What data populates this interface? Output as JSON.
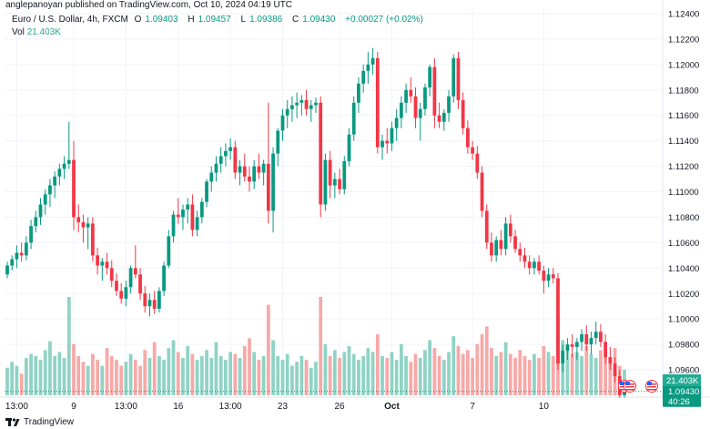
{
  "publisher_line": "anglepanoyan published on TradingView.com, Oct 10, 2024 04:19 UTC",
  "symbol": {
    "name": "Euro / U.S. Dollar, 4h, FXCM",
    "o_label": "O",
    "o": "1.09403",
    "h_label": "H",
    "h": "1.09457",
    "l_label": "L",
    "l": "1.09386",
    "c_label": "C",
    "c": "1.09430",
    "change": "+0.00027 (+0.02%)"
  },
  "volume": {
    "label": "Vol",
    "value": "21.403K"
  },
  "logo_text": "TradingView",
  "colors": {
    "up": "#089981",
    "down": "#f23645",
    "up_vol": "#8fd3c5",
    "down_vol": "#f7a9a7",
    "price_tag": "#089981",
    "vol_tag": "#22ab94"
  },
  "chart_data": {
    "type": "candlestick",
    "ylim": [
      1.094,
      1.1245
    ],
    "y_ticks": [
      "1.12400",
      "1.12200",
      "1.12000",
      "1.11800",
      "1.11600",
      "1.11400",
      "1.11200",
      "1.11000",
      "1.10800",
      "1.10600",
      "1.10400",
      "1.10200",
      "1.10000",
      "1.09800",
      "1.09600"
    ],
    "x_ticks": [
      "13:00",
      "9",
      "13:00",
      "16",
      "13:00",
      "23",
      "26",
      "Oct",
      "7",
      "10"
    ],
    "last_price": "1.09430",
    "countdown": "40:26",
    "last_volume": "21.403K",
    "candles": [
      [
        1.1035,
        1.1045,
        1.1032,
        1.1042
      ],
      [
        1.1042,
        1.105,
        1.1038,
        1.1047
      ],
      [
        1.1047,
        1.1058,
        1.104,
        1.1052
      ],
      [
        1.1052,
        1.106,
        1.1045,
        1.105
      ],
      [
        1.105,
        1.1065,
        1.1046,
        1.106
      ],
      [
        1.106,
        1.1078,
        1.1055,
        1.1073
      ],
      [
        1.1073,
        1.1085,
        1.1068,
        1.108
      ],
      [
        1.108,
        1.1095,
        1.1074,
        1.109
      ],
      [
        1.109,
        1.1102,
        1.1082,
        1.1098
      ],
      [
        1.1098,
        1.111,
        1.1088,
        1.1105
      ],
      [
        1.1105,
        1.1116,
        1.1095,
        1.1112
      ],
      [
        1.1112,
        1.1122,
        1.1105,
        1.1118
      ],
      [
        1.1118,
        1.1128,
        1.111,
        1.1122
      ],
      [
        1.1122,
        1.1155,
        1.1118,
        1.1125
      ],
      [
        1.1125,
        1.114,
        1.107,
        1.108
      ],
      [
        1.108,
        1.109,
        1.1068,
        1.1076
      ],
      [
        1.1076,
        1.1082,
        1.106,
        1.1072
      ],
      [
        1.1072,
        1.108,
        1.1055,
        1.1075
      ],
      [
        1.1075,
        1.108,
        1.1045,
        1.105
      ],
      [
        1.105,
        1.1056,
        1.1035,
        1.1042
      ],
      [
        1.1042,
        1.1048,
        1.103,
        1.1045
      ],
      [
        1.1045,
        1.1052,
        1.1035,
        1.104
      ],
      [
        1.104,
        1.1046,
        1.1025,
        1.103
      ],
      [
        1.103,
        1.1036,
        1.1018,
        1.1022
      ],
      [
        1.1022,
        1.1028,
        1.1012,
        1.1016
      ],
      [
        1.1016,
        1.103,
        1.101,
        1.1025
      ],
      [
        1.1025,
        1.1042,
        1.102,
        1.104
      ],
      [
        1.104,
        1.1058,
        1.1032,
        1.1035
      ],
      [
        1.1035,
        1.104,
        1.1015,
        1.102
      ],
      [
        1.102,
        1.1026,
        1.1005,
        1.101
      ],
      [
        1.101,
        1.102,
        1.1002,
        1.1015
      ],
      [
        1.1015,
        1.1022,
        1.1004,
        1.1008
      ],
      [
        1.1008,
        1.1025,
        1.1005,
        1.1022
      ],
      [
        1.1022,
        1.1045,
        1.1018,
        1.1042
      ],
      [
        1.1042,
        1.107,
        1.104,
        1.1065
      ],
      [
        1.1065,
        1.1085,
        1.106,
        1.1082
      ],
      [
        1.1082,
        1.1095,
        1.1075,
        1.108
      ],
      [
        1.108,
        1.109,
        1.107,
        1.1086
      ],
      [
        1.1086,
        1.1095,
        1.1075,
        1.109
      ],
      [
        1.109,
        1.1098,
        1.1065,
        1.107
      ],
      [
        1.107,
        1.1085,
        1.1065,
        1.108
      ],
      [
        1.108,
        1.1095,
        1.1075,
        1.1092
      ],
      [
        1.1092,
        1.111,
        1.1088,
        1.1108
      ],
      [
        1.1108,
        1.112,
        1.11,
        1.1115
      ],
      [
        1.1115,
        1.1128,
        1.1108,
        1.1122
      ],
      [
        1.1122,
        1.1135,
        1.1115,
        1.1128
      ],
      [
        1.1128,
        1.1138,
        1.112,
        1.1132
      ],
      [
        1.1132,
        1.1142,
        1.1125,
        1.1135
      ],
      [
        1.1135,
        1.114,
        1.111,
        1.1115
      ],
      [
        1.1115,
        1.1125,
        1.1105,
        1.112
      ],
      [
        1.112,
        1.113,
        1.1108,
        1.1112
      ],
      [
        1.1112,
        1.112,
        1.11,
        1.1108
      ],
      [
        1.1108,
        1.1125,
        1.1102,
        1.112
      ],
      [
        1.112,
        1.113,
        1.111,
        1.1115
      ],
      [
        1.1115,
        1.1125,
        1.1105,
        1.1122
      ],
      [
        1.1122,
        1.117,
        1.1075,
        1.1085
      ],
      [
        1.1085,
        1.1135,
        1.1068,
        1.113
      ],
      [
        1.113,
        1.115,
        1.112,
        1.1148
      ],
      [
        1.1148,
        1.1165,
        1.114,
        1.116
      ],
      [
        1.116,
        1.1172,
        1.115,
        1.1165
      ],
      [
        1.1165,
        1.1175,
        1.1155,
        1.1168
      ],
      [
        1.1168,
        1.1178,
        1.1158,
        1.117
      ],
      [
        1.117,
        1.1176,
        1.116,
        1.1172
      ],
      [
        1.1172,
        1.118,
        1.116,
        1.1165
      ],
      [
        1.1165,
        1.1172,
        1.1155,
        1.1168
      ],
      [
        1.1168,
        1.1174,
        1.1162,
        1.117
      ],
      [
        1.117,
        1.1175,
        1.108,
        1.109
      ],
      [
        1.109,
        1.113,
        1.1085,
        1.1125
      ],
      [
        1.1125,
        1.1132,
        1.1095,
        1.1105
      ],
      [
        1.1105,
        1.1115,
        1.1095,
        1.111
      ],
      [
        1.111,
        1.1118,
        1.1098,
        1.1102
      ],
      [
        1.1102,
        1.1128,
        1.1098,
        1.1124
      ],
      [
        1.1124,
        1.115,
        1.112,
        1.1145
      ],
      [
        1.1145,
        1.1175,
        1.114,
        1.117
      ],
      [
        1.117,
        1.119,
        1.1162,
        1.1185
      ],
      [
        1.1185,
        1.12,
        1.1178,
        1.1195
      ],
      [
        1.1195,
        1.121,
        1.1185,
        1.12
      ],
      [
        1.12,
        1.1213,
        1.1192,
        1.1205
      ],
      [
        1.1205,
        1.121,
        1.113,
        1.1135
      ],
      [
        1.1135,
        1.1145,
        1.1125,
        1.114
      ],
      [
        1.114,
        1.115,
        1.113,
        1.1138
      ],
      [
        1.1138,
        1.1155,
        1.1132,
        1.115
      ],
      [
        1.115,
        1.1165,
        1.114,
        1.1158
      ],
      [
        1.1158,
        1.1175,
        1.115,
        1.117
      ],
      [
        1.117,
        1.1185,
        1.1162,
        1.118
      ],
      [
        1.118,
        1.119,
        1.117,
        1.1175
      ],
      [
        1.1175,
        1.1182,
        1.115,
        1.1158
      ],
      [
        1.1158,
        1.117,
        1.114,
        1.1165
      ],
      [
        1.1165,
        1.1185,
        1.116,
        1.1182
      ],
      [
        1.1182,
        1.12,
        1.1175,
        1.1198
      ],
      [
        1.1198,
        1.1205,
        1.115,
        1.116
      ],
      [
        1.116,
        1.117,
        1.115,
        1.1155
      ],
      [
        1.1155,
        1.1165,
        1.1148,
        1.1162
      ],
      [
        1.1162,
        1.118,
        1.1155,
        1.1175
      ],
      [
        1.1175,
        1.1208,
        1.117,
        1.1205
      ],
      [
        1.1205,
        1.121,
        1.1165,
        1.1172
      ],
      [
        1.1172,
        1.1178,
        1.1145,
        1.115
      ],
      [
        1.115,
        1.1156,
        1.113,
        1.1135
      ],
      [
        1.1135,
        1.114,
        1.1125,
        1.113
      ],
      [
        1.113,
        1.1136,
        1.111,
        1.1115
      ],
      [
        1.1115,
        1.112,
        1.108,
        1.1085
      ],
      [
        1.1085,
        1.109,
        1.1055,
        1.106
      ],
      [
        1.106,
        1.1068,
        1.1045,
        1.105
      ],
      [
        1.105,
        1.1065,
        1.1045,
        1.1062
      ],
      [
        1.1062,
        1.107,
        1.105,
        1.1055
      ],
      [
        1.1055,
        1.108,
        1.105,
        1.1075
      ],
      [
        1.1075,
        1.1082,
        1.106,
        1.1065
      ],
      [
        1.1065,
        1.107,
        1.1052,
        1.1055
      ],
      [
        1.1055,
        1.106,
        1.1045,
        1.105
      ],
      [
        1.105,
        1.1056,
        1.104,
        1.1045
      ],
      [
        1.1045,
        1.105,
        1.1035,
        1.104
      ],
      [
        1.104,
        1.1048,
        1.1035,
        1.1045
      ],
      [
        1.1045,
        1.105,
        1.1035,
        1.1038
      ],
      [
        1.1038,
        1.1042,
        1.102,
        1.103
      ],
      [
        1.103,
        1.104,
        1.1025,
        1.1035
      ],
      [
        1.1035,
        1.104,
        1.1028,
        1.1032
      ],
      [
        1.1032,
        1.1036,
        1.096,
        1.0965
      ],
      [
        1.0965,
        1.098,
        1.0958,
        1.0975
      ],
      [
        1.0975,
        1.0985,
        1.0968,
        1.098
      ],
      [
        1.098,
        1.0988,
        1.097,
        1.0978
      ],
      [
        1.0978,
        1.0985,
        1.0968,
        1.0982
      ],
      [
        1.0982,
        1.0992,
        1.0975,
        1.0988
      ],
      [
        1.0988,
        1.0995,
        1.0975,
        1.098
      ],
      [
        1.098,
        1.099,
        1.0972,
        1.0985
      ],
      [
        1.0985,
        1.0998,
        1.098,
        1.099
      ],
      [
        1.099,
        1.0996,
        1.0978,
        1.0982
      ],
      [
        1.0982,
        1.0988,
        1.0965,
        1.097
      ],
      [
        1.097,
        1.0978,
        1.096,
        1.0965
      ],
      [
        1.0965,
        1.097,
        1.095,
        1.0955
      ],
      [
        1.0955,
        1.096,
        1.0938,
        1.094
      ],
      [
        1.094,
        1.0946,
        1.0938,
        1.0943
      ]
    ],
    "volumes": [
      0.28,
      0.34,
      0.3,
      0.22,
      0.38,
      0.42,
      0.4,
      0.36,
      0.46,
      0.55,
      0.4,
      0.44,
      0.38,
      1.0,
      0.52,
      0.4,
      0.34,
      0.3,
      0.42,
      0.36,
      0.3,
      0.48,
      0.4,
      0.36,
      0.3,
      0.34,
      0.42,
      0.36,
      0.3,
      0.46,
      0.38,
      0.54,
      0.4,
      0.36,
      0.48,
      0.56,
      0.44,
      0.38,
      0.5,
      0.42,
      0.36,
      0.4,
      0.46,
      0.38,
      0.54,
      0.4,
      0.36,
      0.44,
      0.42,
      0.38,
      0.5,
      0.58,
      0.44,
      0.36,
      0.4,
      0.92,
      0.56,
      0.4,
      0.36,
      0.42,
      0.3,
      0.34,
      0.4,
      0.36,
      0.28,
      0.34,
      1.0,
      0.52,
      0.4,
      0.46,
      0.38,
      0.44,
      0.5,
      0.42,
      0.36,
      0.4,
      0.48,
      0.44,
      0.62,
      0.4,
      0.38,
      0.44,
      0.36,
      0.52,
      0.4,
      0.34,
      0.42,
      0.38,
      0.46,
      0.56,
      0.48,
      0.4,
      0.36,
      0.44,
      0.6,
      0.5,
      0.42,
      0.46,
      0.38,
      0.52,
      0.62,
      0.7,
      0.48,
      0.4,
      0.44,
      0.54,
      0.42,
      0.38,
      0.46,
      0.4,
      0.36,
      0.42,
      0.38,
      0.5,
      0.44,
      0.4,
      0.82,
      0.56,
      0.48,
      0.42,
      0.44,
      0.4,
      0.5,
      0.42,
      0.38,
      0.46,
      0.4,
      0.36,
      0.48,
      0.3,
      0.26
    ]
  }
}
